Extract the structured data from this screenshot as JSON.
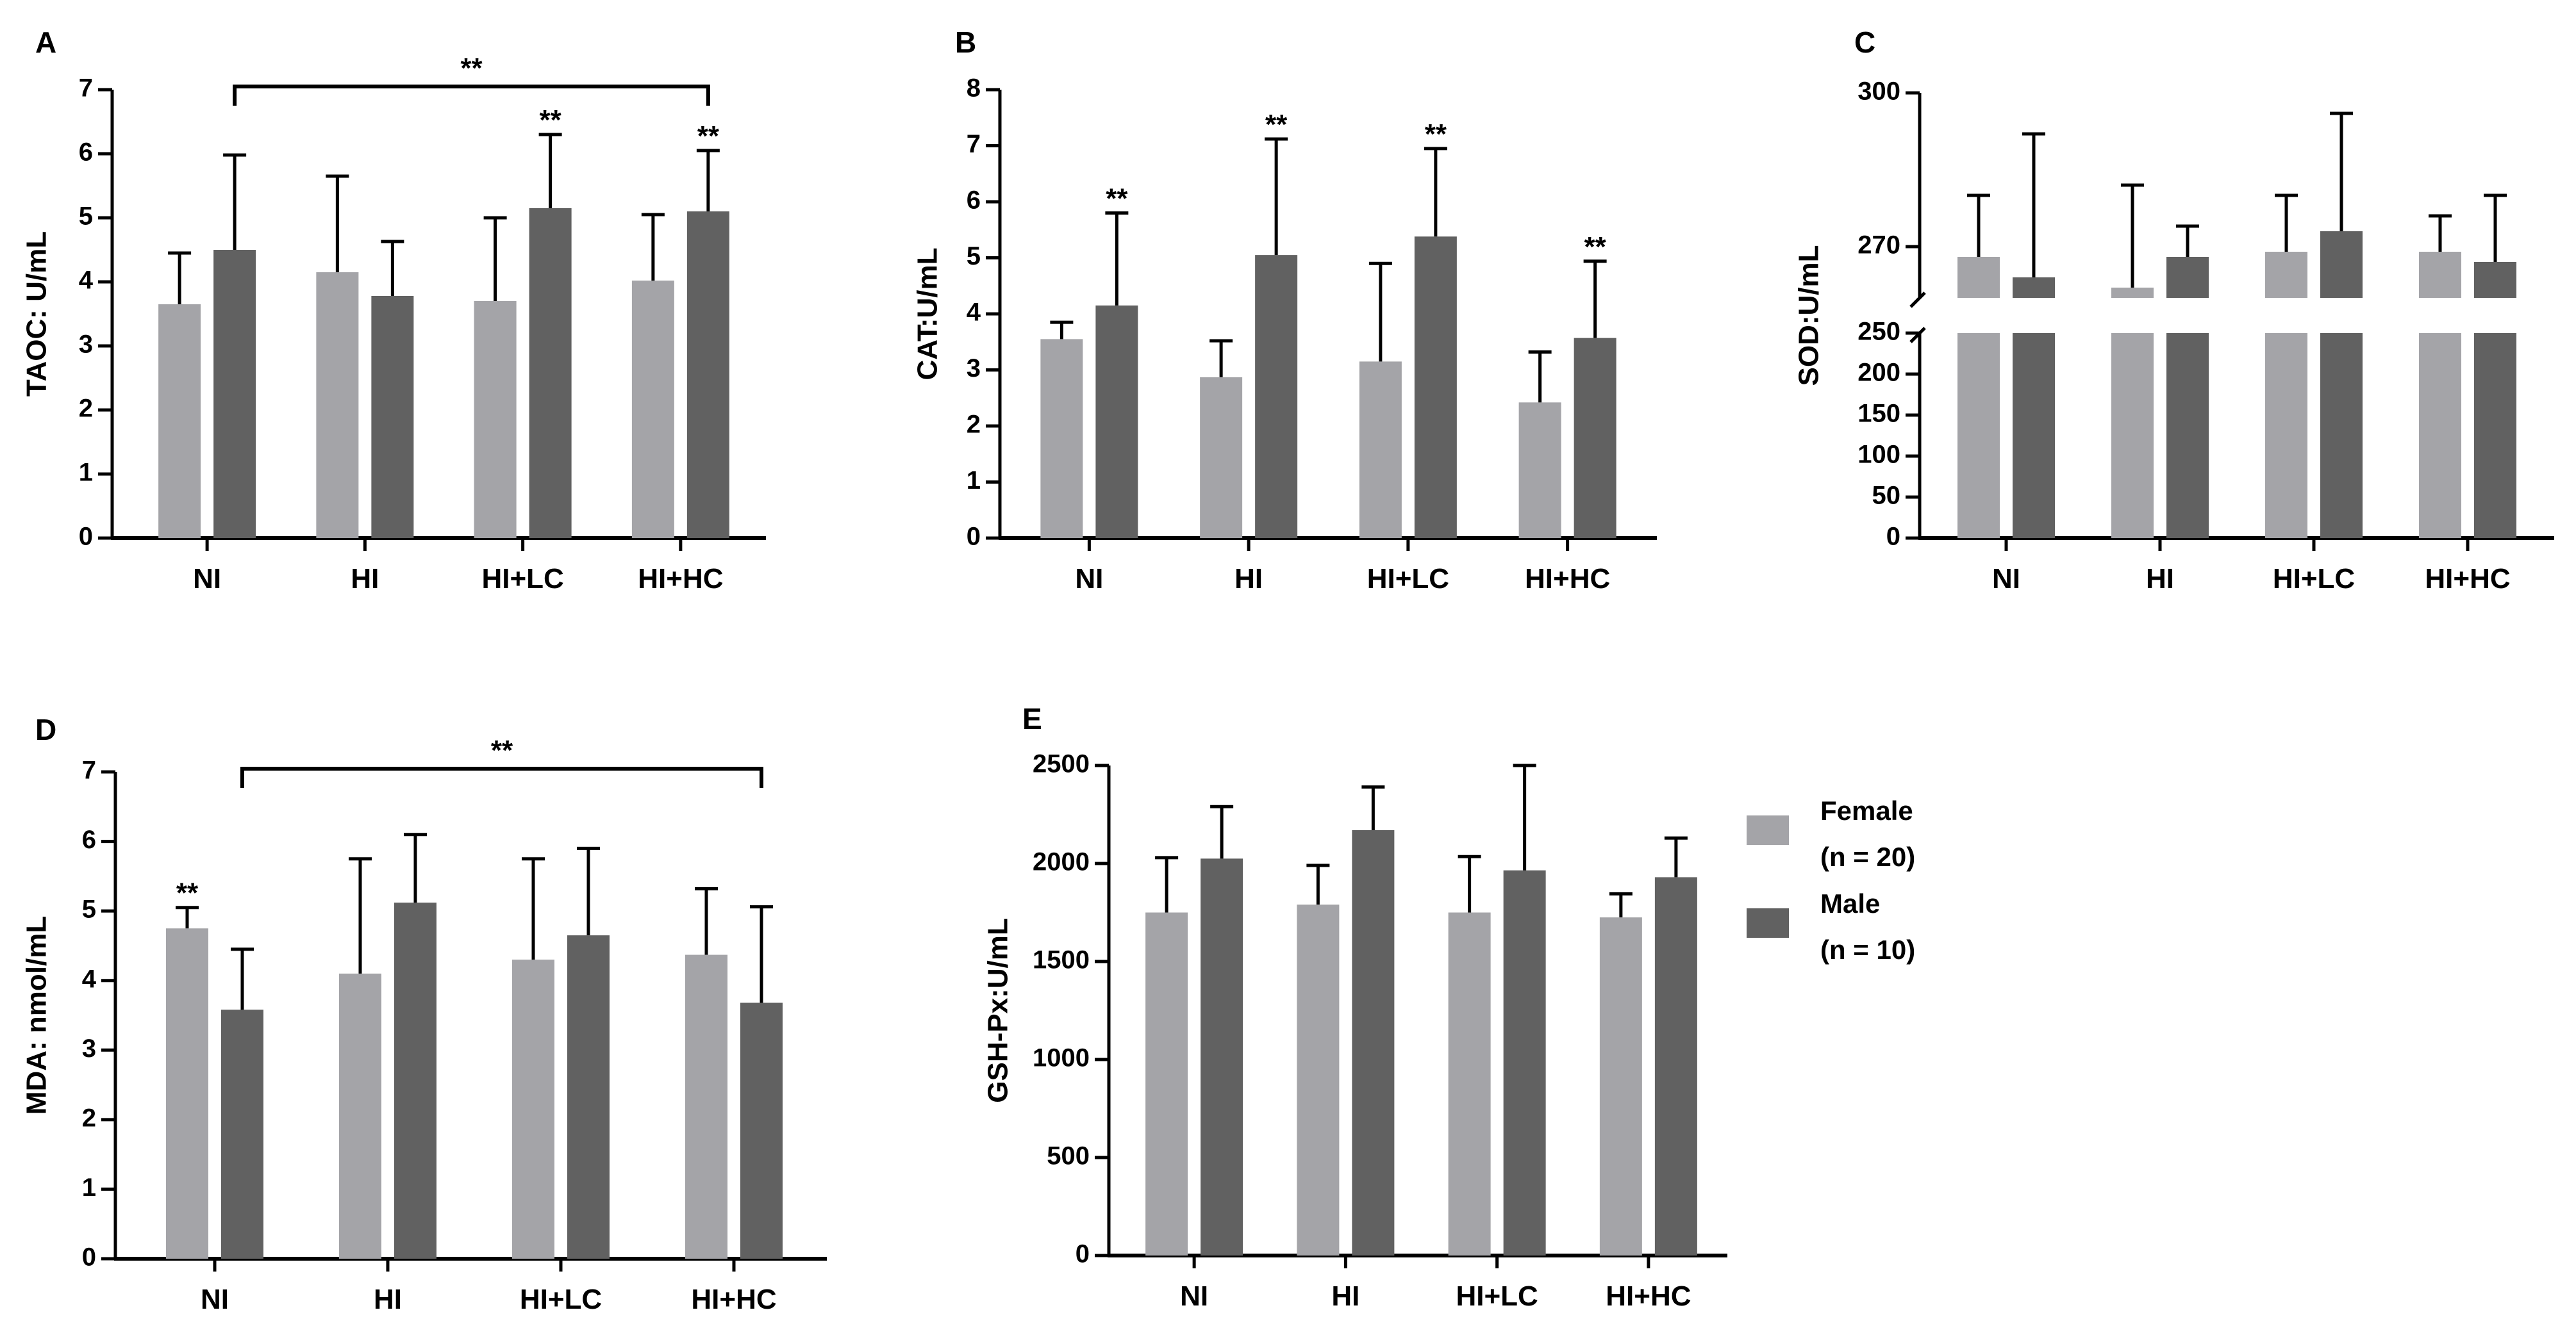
{
  "legend": {
    "female_label": "Female",
    "female_n": "(n = 20)",
    "male_label": "Male",
    "male_n": "(n = 10)"
  },
  "colors": {
    "female": "#a4a4a8",
    "male": "#616161",
    "axis": "#000000"
  },
  "chart_data": [
    {
      "panel": "A",
      "type": "bar",
      "ylabel": "TAOC: U/mL",
      "categories": [
        "NI",
        "HI",
        "HI+LC",
        "HI+HC"
      ],
      "yticks": [
        "0",
        "1",
        "2",
        "3",
        "4",
        "5",
        "6",
        "7"
      ],
      "ylim": [
        0,
        7
      ],
      "series": [
        {
          "name": "Female",
          "values": [
            3.65,
            4.15,
            3.7,
            4.02
          ],
          "errors": [
            0.8,
            1.5,
            1.3,
            1.03
          ]
        },
        {
          "name": "Male",
          "values": [
            4.5,
            3.78,
            5.15,
            5.1
          ],
          "errors": [
            1.48,
            0.85,
            1.15,
            0.95
          ]
        }
      ],
      "stars": [
        {
          "group": 2,
          "series": 1,
          "text": "**"
        },
        {
          "group": 3,
          "series": 1,
          "text": "**"
        }
      ],
      "brackets": [
        {
          "from": 0,
          "to": 3,
          "text": "**"
        }
      ]
    },
    {
      "panel": "B",
      "type": "bar",
      "ylabel": "CAT:U/mL",
      "categories": [
        "NI",
        "HI",
        "HI+LC",
        "HI+HC"
      ],
      "yticks": [
        "0",
        "1",
        "2",
        "3",
        "4",
        "5",
        "6",
        "7",
        "8"
      ],
      "ylim": [
        0,
        8
      ],
      "series": [
        {
          "name": "Female",
          "values": [
            3.55,
            2.87,
            3.15,
            2.42
          ],
          "errors": [
            0.3,
            0.65,
            1.75,
            0.9
          ]
        },
        {
          "name": "Male",
          "values": [
            4.15,
            5.05,
            5.38,
            3.57
          ],
          "errors": [
            1.65,
            2.07,
            1.57,
            1.37
          ]
        }
      ],
      "stars": [
        {
          "group": 0,
          "series": 1,
          "text": "**"
        },
        {
          "group": 1,
          "series": 1,
          "text": "**"
        },
        {
          "group": 2,
          "series": 1,
          "text": "**"
        },
        {
          "group": 3,
          "series": 1,
          "text": "**"
        }
      ],
      "brackets": []
    },
    {
      "panel": "C",
      "type": "bar",
      "ylabel": "SOD:U/mL",
      "categories": [
        "NI",
        "HI",
        "HI+LC",
        "HI+HC"
      ],
      "broken_axis": {
        "lower": [
          0,
          250
        ],
        "upper": [
          260,
          300
        ]
      },
      "yticks_lower": [
        "0",
        "50",
        "100",
        "150",
        "200",
        "250"
      ],
      "yticks_upper": [
        "270",
        "300"
      ],
      "series": [
        {
          "name": "Female",
          "values": [
            268,
            262,
            269,
            269
          ],
          "errors": [
            12,
            20,
            11,
            7
          ]
        },
        {
          "name": "Male",
          "values": [
            264,
            268,
            273,
            267
          ],
          "errors": [
            28,
            6,
            23,
            13
          ]
        }
      ],
      "stars": [],
      "brackets": []
    },
    {
      "panel": "D",
      "type": "bar",
      "ylabel": "MDA: nmol/mL",
      "categories": [
        "NI",
        "HI",
        "HI+LC",
        "HI+HC"
      ],
      "yticks": [
        "0",
        "1",
        "2",
        "3",
        "4",
        "5",
        "6",
        "7"
      ],
      "ylim": [
        0,
        7
      ],
      "series": [
        {
          "name": "Female",
          "values": [
            4.75,
            4.1,
            4.3,
            4.37
          ],
          "errors": [
            0.3,
            1.65,
            1.45,
            0.95
          ]
        },
        {
          "name": "Male",
          "values": [
            3.58,
            5.12,
            4.65,
            3.68
          ],
          "errors": [
            0.87,
            0.98,
            1.25,
            1.38
          ]
        }
      ],
      "stars": [
        {
          "group": 0,
          "series": 0,
          "text": "**"
        }
      ],
      "brackets": [
        {
          "from": 0,
          "to": 3,
          "text": "**"
        }
      ]
    },
    {
      "panel": "E",
      "type": "bar",
      "ylabel": "GSH-Px:U/mL",
      "categories": [
        "NI",
        "HI",
        "HI+LC",
        "HI+HC"
      ],
      "yticks": [
        "0",
        "500",
        "1000",
        "1500",
        "2000",
        "2500"
      ],
      "ylim": [
        0,
        2500
      ],
      "series": [
        {
          "name": "Female",
          "values": [
            1750,
            1790,
            1750,
            1725
          ],
          "errors": [
            280,
            200,
            285,
            120
          ]
        },
        {
          "name": "Male",
          "values": [
            2025,
            2170,
            1965,
            1930
          ],
          "errors": [
            265,
            220,
            535,
            200
          ]
        }
      ],
      "stars": [],
      "brackets": []
    }
  ]
}
